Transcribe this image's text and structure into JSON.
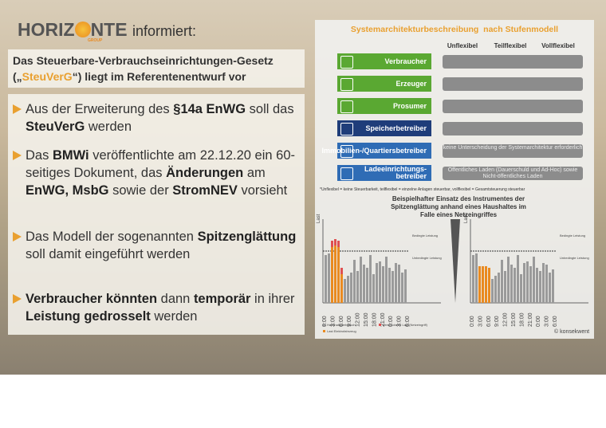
{
  "logo": {
    "part1": "HORIZ",
    "part2": "NTE",
    "sub": "GROUP",
    "tagline": "informiert:"
  },
  "heading": {
    "line1": "Das Steuerbare-Verbrauchseinrichtungen-Gesetz",
    "line2": [
      {
        "text": "(„"
      },
      {
        "text": "SteuVerG",
        "accent": true
      },
      {
        "text": "“) liegt im Referentenentwurf vor"
      }
    ]
  },
  "bullets": [
    [
      {
        "text": "Aus der Erweiterung des "
      },
      {
        "text": "§14a EnWG",
        "bold": true
      },
      {
        "text": " soll das "
      },
      {
        "text": "SteuVerG",
        "bold": true
      },
      {
        "text": " werden"
      }
    ],
    [
      {
        "text": "Das "
      },
      {
        "text": "BMWi",
        "bold": true
      },
      {
        "text": " veröffentlichte am 22.12.20 ein 60-seitiges Dokument, das "
      },
      {
        "text": "Änderungen",
        "bold": true
      },
      {
        "text": " am "
      },
      {
        "text": "EnWG, MsbG",
        "bold": true
      },
      {
        "text": " sowie der "
      },
      {
        "text": "StromNEV",
        "bold": true
      },
      {
        "text": " vorsieht"
      }
    ],
    [
      {
        "text": "Das Modell der sogenannten "
      },
      {
        "text": "Spitzenglättung",
        "bold": true
      },
      {
        "text": " soll damit eingeführt werden"
      }
    ],
    [
      {
        "text": "Verbraucher könnten",
        "bold": true
      },
      {
        "text": " dann "
      },
      {
        "text": "temporär",
        "bold": true
      },
      {
        "text": " in ihrer "
      },
      {
        "text": "Leistung gedrosselt",
        "bold": true
      },
      {
        "text": " werden"
      }
    ]
  ],
  "panel": {
    "title": "Systemarchitekturbeschreibung  nach Stufenmodell",
    "columns": [
      "Unflexibel",
      "Teilflexibel",
      "Vollflexibel"
    ],
    "rows": [
      {
        "label": "Verbraucher",
        "color": "#5aa832",
        "dots": [
          true,
          true,
          true
        ]
      },
      {
        "label": "Erzeuger",
        "color": "#5aa832",
        "dots": [
          true,
          true,
          true
        ]
      },
      {
        "label": "Prosumer",
        "color": "#5aa832",
        "dots": [
          true,
          true,
          true
        ]
      },
      {
        "label": "Speicherbetreiber",
        "color": "#1f3d7a",
        "dots": [
          false,
          false,
          true
        ]
      },
      {
        "label": "Immobilien-/Quartiersbetreiber",
        "color": "#2f6cb5",
        "note": "keine Unterscheidung der Systemarchitektur erforderlich"
      },
      {
        "label": "Ladeeinrichtungs-betreiber",
        "color": "#2f6cb5",
        "note": "Öffentliches Laden (Dauerschuld und Ad-Hoc) sowie Nicht-öffentliches Laden"
      }
    ],
    "footnote": "*Unflexibel = keine Steuerbarkeit, teilflexibel = einzelne Anlagen steuerbar, vollflexibel = Gesamtsteuerung steuerbar",
    "caption": "Beispielhafter Einsatz des Instrumentes der Spitzenglättung anhand eines Haushaltes im Falle eines Netzeingriffes",
    "axis_label": "Last",
    "upper_label": "Bedingte Leistung",
    "lower_label": "Unbedingte Leistung",
    "times": [
      "0:00",
      "3:00",
      "6:00",
      "9:00",
      "12:00",
      "15:00",
      "18:00",
      "21:00",
      "0:00",
      "3:00",
      "6:00"
    ],
    "legend": [
      "Haushaltsverbrauch",
      "Verschobene Last (Netzeingriff)",
      "Last Elektrofahrzeug"
    ],
    "copyright": "© konsekwent"
  }
}
